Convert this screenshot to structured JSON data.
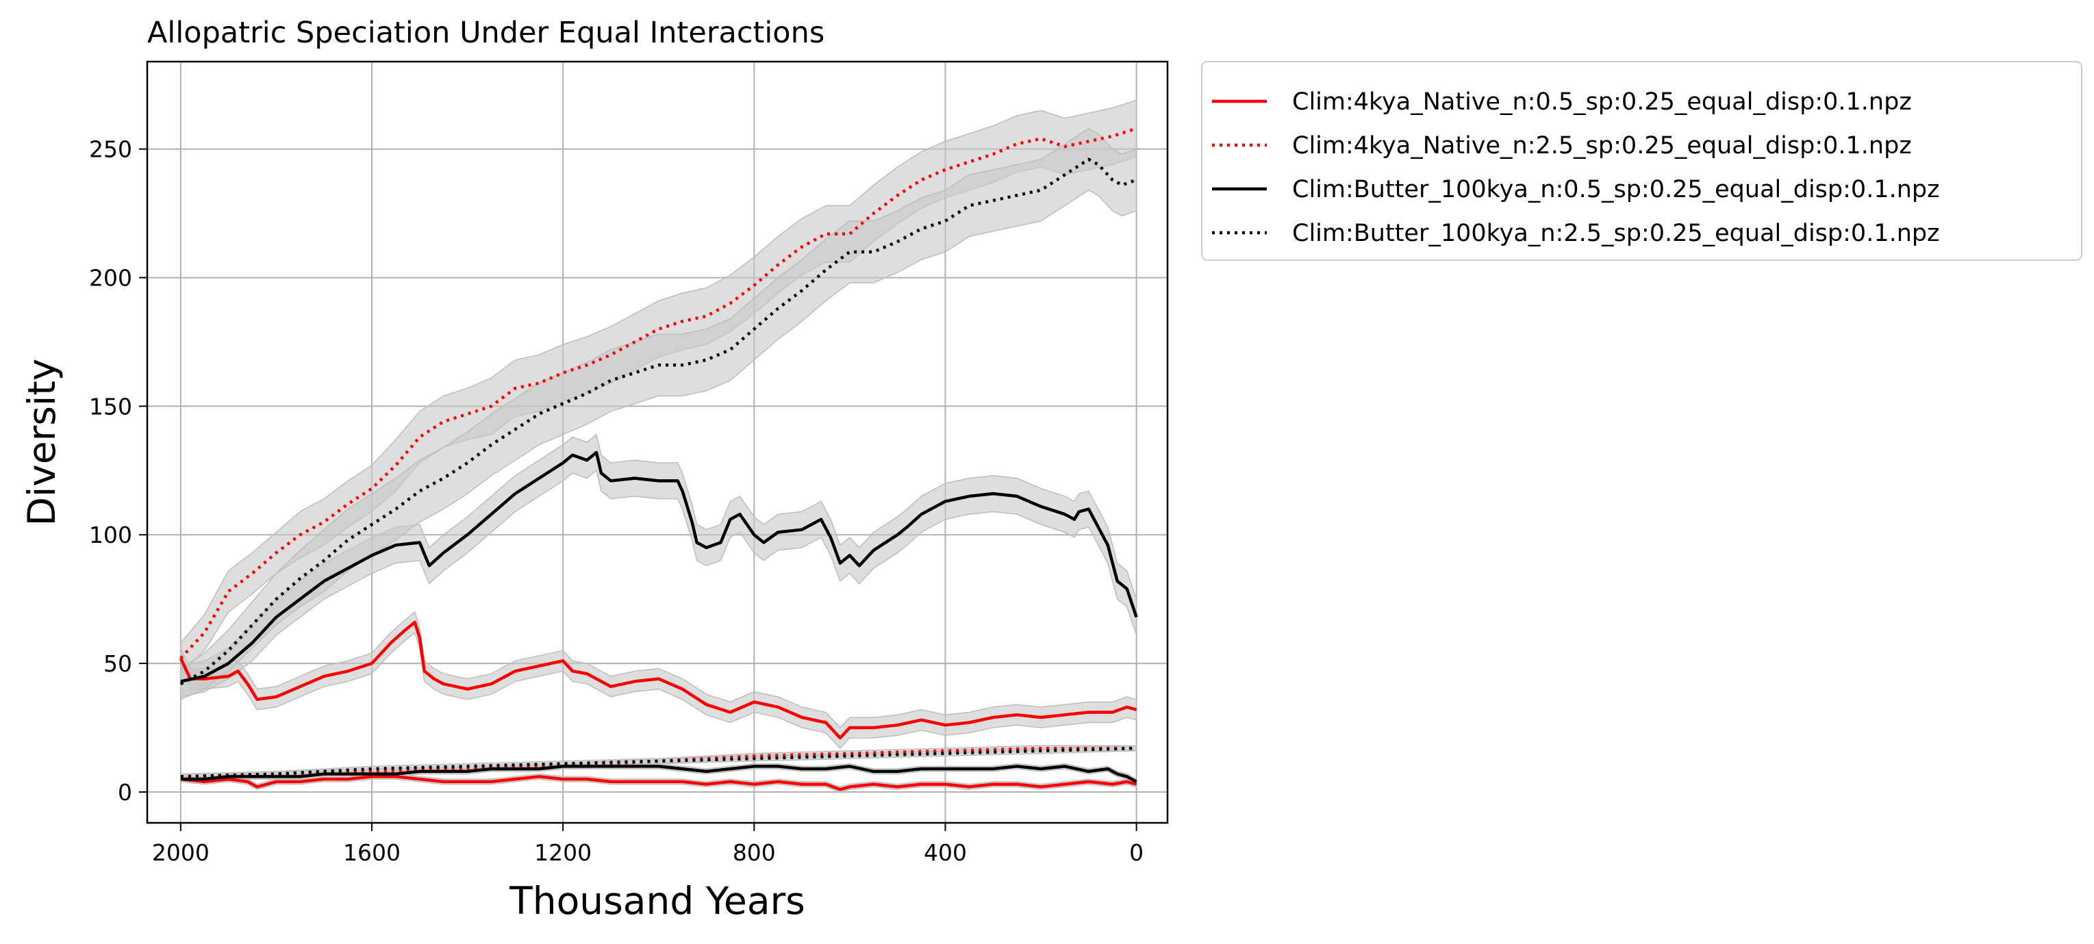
{
  "chart_data": {
    "type": "line",
    "title": "Allopatric Speciation Under Equal Interactions",
    "xlabel": "Thousand Years",
    "ylabel": "Diversity",
    "xlim": [
      2000,
      0
    ],
    "ylim": [
      -12,
      284
    ],
    "xticks": [
      2000,
      1600,
      1200,
      800,
      400,
      0
    ],
    "yticks": [
      0,
      50,
      100,
      150,
      200,
      250
    ],
    "grid": true,
    "legend_position": "outside upper-right",
    "colors": {
      "red": "#ff0000",
      "black": "#000000",
      "band": "#c8c8c8"
    },
    "series": [
      {
        "name": "Clim:4kya_Native_n:0.5_sp:0.25_equal_disp:0.1.npz",
        "color": "#ff0000",
        "style": "solid",
        "x": [
          2000,
          1980,
          1950,
          1900,
          1880,
          1860,
          1840,
          1800,
          1750,
          1700,
          1650,
          1600,
          1560,
          1530,
          1510,
          1500,
          1490,
          1470,
          1450,
          1400,
          1350,
          1300,
          1250,
          1200,
          1180,
          1150,
          1100,
          1050,
          1000,
          950,
          900,
          850,
          800,
          750,
          700,
          650,
          620,
          600,
          550,
          500,
          450,
          400,
          350,
          300,
          250,
          200,
          150,
          100,
          50,
          20,
          0
        ],
        "y": [
          52,
          44,
          44,
          45,
          47,
          42,
          36,
          37,
          41,
          45,
          47,
          50,
          58,
          63,
          66,
          60,
          47,
          44,
          42,
          40,
          42,
          47,
          49,
          51,
          47,
          46,
          41,
          43,
          44,
          40,
          34,
          31,
          35,
          33,
          29,
          27,
          21,
          25,
          25,
          26,
          28,
          26,
          27,
          29,
          30,
          29,
          30,
          31,
          31,
          33,
          32
        ],
        "band": [
          4,
          4,
          4,
          4,
          4,
          4,
          4,
          4,
          4,
          4,
          4,
          4,
          4,
          4,
          4,
          4,
          4,
          4,
          4,
          4,
          4,
          4,
          4,
          4,
          4,
          4,
          4,
          4,
          4,
          4,
          4,
          4,
          4,
          4,
          4,
          4,
          4,
          4,
          4,
          4,
          4,
          4,
          4,
          4,
          4,
          4,
          4,
          4,
          4,
          4,
          4
        ]
      },
      {
        "name": "Clim:4kya_Native_n:2.5_sp:0.25_equal_disp:0.1.npz",
        "color": "#ff0000",
        "style": "dotted",
        "x": [
          2000,
          1950,
          1900,
          1850,
          1800,
          1750,
          1700,
          1650,
          1600,
          1550,
          1500,
          1450,
          1400,
          1350,
          1300,
          1250,
          1200,
          1150,
          1100,
          1050,
          1000,
          950,
          900,
          850,
          800,
          750,
          700,
          650,
          600,
          550,
          500,
          450,
          400,
          350,
          300,
          250,
          200,
          150,
          100,
          50,
          0
        ],
        "y": [
          52,
          62,
          78,
          85,
          93,
          100,
          105,
          112,
          118,
          127,
          138,
          144,
          147,
          150,
          157,
          159,
          163,
          166,
          170,
          175,
          180,
          183,
          185,
          190,
          197,
          205,
          212,
          217,
          217,
          225,
          232,
          238,
          242,
          245,
          248,
          252,
          254,
          251,
          253,
          255,
          258
        ],
        "band": [
          6,
          7,
          8,
          8,
          8,
          9,
          9,
          9,
          9,
          10,
          10,
          10,
          10,
          11,
          11,
          11,
          11,
          11,
          11,
          11,
          11,
          11,
          11,
          11,
          11,
          11,
          11,
          11,
          11,
          11,
          11,
          11,
          11,
          11,
          11,
          11,
          11,
          11,
          11,
          11,
          11
        ]
      },
      {
        "name": "Clim:Butter_100kya_n:0.5_sp:0.25_equal_disp:0.1.npz",
        "color": "#000000",
        "style": "solid",
        "x": [
          2000,
          1950,
          1900,
          1850,
          1800,
          1750,
          1700,
          1650,
          1600,
          1550,
          1500,
          1480,
          1450,
          1400,
          1350,
          1300,
          1250,
          1200,
          1180,
          1150,
          1130,
          1120,
          1100,
          1050,
          1000,
          960,
          950,
          930,
          920,
          900,
          870,
          850,
          830,
          800,
          780,
          750,
          700,
          660,
          640,
          620,
          600,
          580,
          550,
          500,
          480,
          450,
          400,
          350,
          300,
          250,
          200,
          150,
          130,
          120,
          100,
          80,
          60,
          40,
          20,
          0
        ],
        "y": [
          43,
          45,
          50,
          58,
          68,
          75,
          82,
          87,
          92,
          96,
          97,
          88,
          93,
          100,
          108,
          116,
          122,
          128,
          131,
          129,
          132,
          124,
          121,
          122,
          121,
          121,
          117,
          105,
          97,
          95,
          97,
          106,
          108,
          100,
          97,
          101,
          102,
          106,
          99,
          89,
          92,
          88,
          94,
          100,
          103,
          108,
          113,
          115,
          116,
          115,
          111,
          108,
          106,
          109,
          110,
          103,
          96,
          82,
          79,
          68
        ],
        "band": [
          6,
          6,
          6,
          7,
          7,
          7,
          7,
          7,
          7,
          7,
          7,
          7,
          7,
          7,
          7,
          7,
          7,
          7,
          7,
          7,
          7,
          7,
          7,
          7,
          7,
          7,
          7,
          7,
          7,
          7,
          7,
          7,
          7,
          7,
          7,
          7,
          7,
          7,
          7,
          7,
          7,
          7,
          7,
          7,
          7,
          7,
          7,
          7,
          7,
          7,
          7,
          7,
          7,
          7,
          7,
          7,
          7,
          7,
          7,
          7
        ]
      },
      {
        "name": "Clim:Butter_100kya_n:2.5_sp:0.25_equal_disp:0.1.npz",
        "color": "#000000",
        "style": "dotted",
        "x": [
          2000,
          1950,
          1900,
          1850,
          1800,
          1750,
          1700,
          1650,
          1600,
          1550,
          1500,
          1450,
          1400,
          1350,
          1300,
          1250,
          1200,
          1150,
          1100,
          1050,
          1000,
          950,
          900,
          850,
          800,
          750,
          700,
          650,
          600,
          550,
          500,
          450,
          400,
          350,
          300,
          250,
          200,
          150,
          100,
          80,
          50,
          30,
          0
        ],
        "y": [
          42,
          47,
          55,
          65,
          75,
          83,
          90,
          98,
          104,
          110,
          117,
          122,
          128,
          135,
          141,
          147,
          151,
          155,
          160,
          163,
          166,
          166,
          168,
          172,
          180,
          188,
          195,
          203,
          210,
          210,
          214,
          219,
          222,
          228,
          230,
          232,
          234,
          240,
          246,
          244,
          238,
          236,
          238
        ],
        "band": [
          6,
          7,
          8,
          9,
          10,
          11,
          12,
          12,
          12,
          12,
          12,
          12,
          12,
          12,
          12,
          12,
          12,
          12,
          12,
          12,
          12,
          12,
          12,
          12,
          12,
          12,
          12,
          12,
          12,
          12,
          12,
          12,
          12,
          12,
          12,
          12,
          12,
          12,
          12,
          12,
          12,
          12,
          12
        ]
      },
      {
        "color": "#ff0000",
        "style": "solid",
        "x": [
          2000,
          1950,
          1900,
          1860,
          1840,
          1800,
          1750,
          1700,
          1650,
          1600,
          1550,
          1500,
          1450,
          1400,
          1350,
          1300,
          1250,
          1200,
          1150,
          1100,
          1050,
          1000,
          950,
          900,
          850,
          800,
          750,
          700,
          650,
          620,
          600,
          550,
          500,
          450,
          400,
          350,
          300,
          250,
          200,
          150,
          100,
          50,
          20,
          0
        ],
        "y": [
          5,
          4,
          5,
          4,
          2,
          4,
          4,
          5,
          5,
          6,
          6,
          5,
          4,
          4,
          4,
          5,
          6,
          5,
          5,
          4,
          4,
          4,
          4,
          3,
          4,
          3,
          4,
          3,
          3,
          1,
          2,
          3,
          2,
          3,
          3,
          2,
          3,
          3,
          2,
          3,
          4,
          3,
          4,
          3
        ],
        "band": [
          1,
          1,
          1,
          1,
          1,
          1,
          1,
          1,
          1,
          1,
          1,
          1,
          1,
          1,
          1,
          1,
          1,
          1,
          1,
          1,
          1,
          1,
          1,
          1,
          1,
          1,
          1,
          1,
          1,
          1,
          1,
          1,
          1,
          1,
          1,
          1,
          1,
          1,
          1,
          1,
          1,
          1,
          1,
          1
        ]
      },
      {
        "color": "#ff0000",
        "style": "dotted",
        "x": [
          2000,
          1800,
          1600,
          1400,
          1200,
          1000,
          800,
          600,
          400,
          200,
          0
        ],
        "y": [
          6,
          7,
          8,
          9,
          10,
          12,
          14,
          15,
          16,
          17,
          17
        ],
        "band": [
          1,
          1,
          1,
          1,
          1,
          1,
          1,
          1,
          1,
          1,
          1
        ]
      },
      {
        "color": "#000000",
        "style": "solid",
        "x": [
          2000,
          1950,
          1900,
          1850,
          1800,
          1750,
          1700,
          1650,
          1600,
          1550,
          1500,
          1450,
          1400,
          1350,
          1300,
          1250,
          1200,
          1150,
          1100,
          1050,
          1000,
          950,
          900,
          850,
          800,
          750,
          700,
          650,
          600,
          550,
          500,
          450,
          400,
          350,
          300,
          250,
          200,
          150,
          100,
          60,
          40,
          20,
          0
        ],
        "y": [
          5,
          5,
          6,
          6,
          6,
          6,
          7,
          7,
          7,
          7,
          8,
          8,
          8,
          9,
          9,
          9,
          10,
          10,
          10,
          10,
          10,
          9,
          8,
          9,
          10,
          10,
          9,
          9,
          10,
          8,
          8,
          9,
          9,
          9,
          9,
          10,
          9,
          10,
          8,
          9,
          7,
          6,
          4
        ],
        "band": [
          1,
          1,
          1,
          1,
          1,
          1,
          1,
          1,
          1,
          1,
          1,
          1,
          1,
          1,
          1,
          1,
          1,
          1,
          1,
          1,
          1,
          1,
          1,
          1,
          1,
          1,
          1,
          1,
          1,
          1,
          1,
          1,
          1,
          1,
          1,
          1,
          1,
          1,
          1,
          1,
          1,
          1,
          1
        ]
      },
      {
        "color": "#000000",
        "style": "dotted",
        "x": [
          2000,
          1800,
          1600,
          1400,
          1200,
          1000,
          800,
          600,
          400,
          200,
          0
        ],
        "y": [
          6,
          7,
          9,
          10,
          11,
          12,
          13,
          14,
          15,
          16,
          17
        ],
        "band": [
          1,
          1,
          1,
          1,
          1,
          1,
          1,
          1,
          1,
          1,
          1
        ]
      }
    ]
  }
}
